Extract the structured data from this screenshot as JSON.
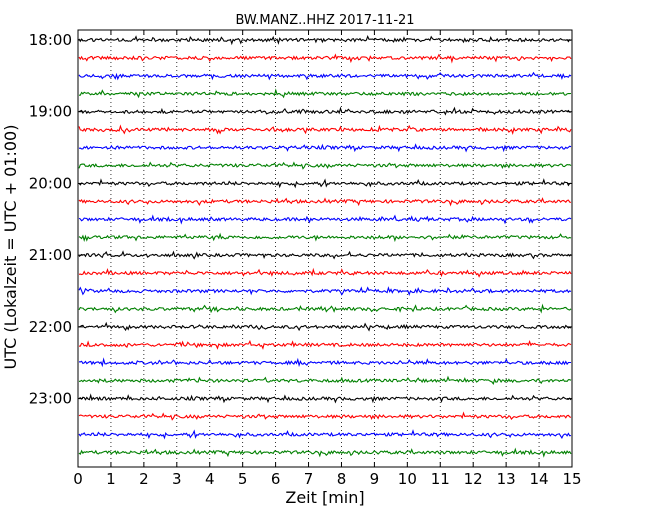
{
  "chart_data": {
    "type": "line",
    "title": "BW.MANZ..HHZ 2017-11-21",
    "xlabel": "Zeit  [min]",
    "ylabel": "UTC (Lokalzeit = UTC + 01:00)",
    "xlim": [
      0,
      15
    ],
    "x_ticks": [
      0,
      1,
      2,
      3,
      4,
      5,
      6,
      7,
      8,
      9,
      10,
      11,
      12,
      13,
      14,
      15
    ],
    "y_tick_labels": [
      "18:00",
      "19:00",
      "20:00",
      "21:00",
      "22:00",
      "23:00"
    ],
    "row_interval_minutes": 15,
    "grid": "vertical-dotted",
    "trace_colors": [
      "#000000",
      "#ff0000",
      "#0000ff",
      "#008000"
    ],
    "rows": [
      "18:00",
      "18:15",
      "18:30",
      "18:45",
      "19:00",
      "19:15",
      "19:30",
      "19:45",
      "20:00",
      "20:15",
      "20:30",
      "20:45",
      "21:00",
      "21:15",
      "21:30",
      "21:45",
      "22:00",
      "22:15",
      "22:30",
      "22:45",
      "23:00",
      "23:15",
      "23:30",
      "23:45"
    ]
  }
}
